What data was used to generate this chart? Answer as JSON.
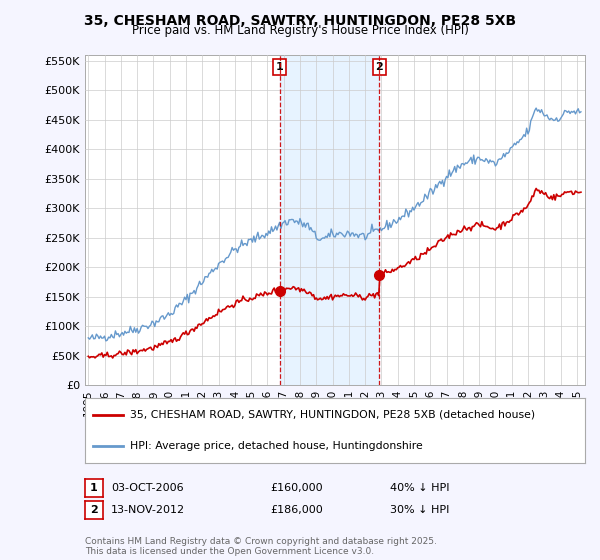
{
  "title": "35, CHESHAM ROAD, SAWTRY, HUNTINGDON, PE28 5XB",
  "subtitle": "Price paid vs. HM Land Registry's House Price Index (HPI)",
  "line1_label": "35, CHESHAM ROAD, SAWTRY, HUNTINGDON, PE28 5XB (detached house)",
  "line2_label": "HPI: Average price, detached house, Huntingdonshire",
  "transaction1_date": "03-OCT-2006",
  "transaction1_price": "£160,000",
  "transaction1_hpi": "40% ↓ HPI",
  "transaction1_x": 2006.75,
  "transaction1_y": 160000,
  "transaction2_date": "13-NOV-2012",
  "transaction2_price": "£186,000",
  "transaction2_hpi": "30% ↓ HPI",
  "transaction2_x": 2012.87,
  "transaction2_y": 186000,
  "footer": "Contains HM Land Registry data © Crown copyright and database right 2025.\nThis data is licensed under the Open Government Licence v3.0.",
  "hpi_color": "#6699cc",
  "price_color": "#cc0000",
  "vline_color": "#cc0000",
  "shade_color": "#ddeeff",
  "background_color": "#f5f5ff",
  "plot_bg_color": "#ffffff",
  "grid_color": "#cccccc",
  "ylim": [
    0,
    560000
  ],
  "xlim_left": 1994.8,
  "xlim_right": 2025.5
}
